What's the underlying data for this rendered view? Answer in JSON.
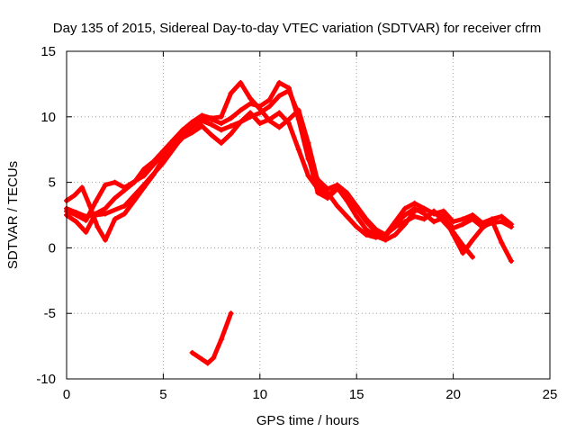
{
  "chart_data": {
    "type": "line",
    "title": "Day 135 of 2015, Sidereal Day-to-day VTEC variation (SDTVAR) for receiver cfrm",
    "xlabel": "GPS time / hours",
    "ylabel": "SDTVAR / TECUs",
    "xlim": [
      0,
      25
    ],
    "ylim": [
      -10,
      15
    ],
    "xticks": [
      0,
      5,
      10,
      15,
      20,
      25
    ],
    "yticks": [
      -10,
      -5,
      0,
      5,
      10,
      15
    ],
    "xtick_labels": [
      "0",
      "5",
      "10",
      "15",
      "20",
      "25"
    ],
    "ytick_labels": [
      "-10",
      "-5",
      "0",
      "5",
      "10",
      "15"
    ],
    "grid": true,
    "legend": "none",
    "color": "#ff0000",
    "series": [
      {
        "name": "track-1",
        "x": [
          0.0,
          0.5,
          1.0,
          2.0,
          3.0,
          4.0,
          5.0,
          6.0,
          6.5,
          7.0,
          7.5,
          8.0,
          8.5,
          9.0,
          9.5,
          10.0,
          10.5,
          11.0,
          11.5,
          12.0,
          12.5,
          13.0,
          13.5,
          14.0,
          14.5,
          15.0,
          15.5,
          16.0,
          16.5,
          17.0,
          17.5,
          18.0,
          18.5,
          19.0,
          19.5,
          20.0,
          20.5,
          21.0,
          21.5,
          22.0,
          22.5,
          23.0
        ],
        "y": [
          3.0,
          2.7,
          2.4,
          2.6,
          3.2,
          4.8,
          6.5,
          8.5,
          9.2,
          9.7,
          9.4,
          9.0,
          9.3,
          9.6,
          10.0,
          10.3,
          10.8,
          11.6,
          12.0,
          10.2,
          7.0,
          4.2,
          3.8,
          4.5,
          4.0,
          3.0,
          2.0,
          1.2,
          0.9,
          1.8,
          2.5,
          3.0,
          2.6,
          2.0,
          2.3,
          1.5,
          1.8,
          2.2,
          1.6,
          1.9,
          2.0,
          1.6
        ]
      },
      {
        "name": "track-2",
        "x": [
          0.0,
          0.5,
          1.0,
          1.5,
          2.0,
          2.5,
          3.0,
          4.0,
          5.0,
          6.0,
          6.5,
          7.0,
          7.5,
          8.0,
          8.5,
          9.0,
          9.5,
          10.0,
          10.5,
          11.0,
          11.5,
          12.0,
          12.5,
          13.0,
          13.5,
          14.0,
          14.5,
          15.0,
          15.5,
          16.0,
          16.5,
          17.0,
          17.5,
          18.0,
          18.5,
          19.0,
          19.5,
          20.0,
          20.5,
          21.0,
          21.5,
          22.0,
          22.5,
          23.0
        ],
        "y": [
          2.8,
          2.5,
          2.1,
          3.5,
          4.8,
          5.0,
          4.6,
          5.5,
          7.2,
          8.7,
          9.6,
          10.0,
          9.8,
          9.5,
          9.9,
          10.5,
          11.0,
          10.8,
          11.3,
          12.6,
          12.2,
          9.8,
          6.8,
          5.2,
          4.5,
          4.8,
          4.2,
          3.2,
          2.2,
          1.4,
          1.0,
          2.0,
          3.0,
          3.4,
          3.0,
          2.6,
          2.8,
          2.0,
          2.2,
          2.5,
          1.9,
          2.2,
          2.4,
          1.8
        ]
      },
      {
        "name": "track-3",
        "x": [
          0.0,
          0.4,
          0.8,
          1.2,
          1.6,
          2.0,
          2.5,
          3.0,
          3.5,
          4.0,
          4.5,
          5.0,
          5.5,
          6.0,
          6.5,
          7.0,
          7.5,
          8.0,
          8.5,
          9.0,
          9.5,
          10.0,
          10.5,
          11.0,
          11.5,
          12.0,
          12.5,
          13.0,
          13.5,
          14.0,
          14.5,
          15.0,
          15.5,
          16.0,
          16.5,
          17.0,
          17.5,
          18.0,
          18.5,
          19.0,
          19.5,
          20.0,
          20.5,
          21.0
        ],
        "y": [
          3.6,
          4.0,
          4.6,
          3.2,
          1.6,
          0.6,
          2.2,
          2.6,
          3.6,
          4.6,
          5.6,
          6.8,
          7.6,
          8.4,
          8.8,
          9.3,
          8.6,
          8.0,
          8.7,
          9.6,
          10.3,
          9.5,
          9.8,
          10.3,
          9.5,
          7.5,
          5.5,
          4.5,
          4.2,
          3.2,
          2.4,
          1.6,
          1.0,
          0.8,
          1.0,
          1.6,
          2.0,
          2.4,
          2.2,
          2.8,
          2.0,
          1.2,
          0.2,
          -0.7
        ]
      },
      {
        "name": "track-4",
        "x": [
          0.0,
          0.5,
          1.0,
          1.5,
          2.0,
          2.5,
          3.0,
          3.5,
          4.0,
          4.5,
          5.0,
          5.5,
          6.0,
          6.5,
          7.0,
          7.5,
          8.0,
          8.5,
          9.0,
          9.5,
          10.0,
          10.5,
          11.0,
          11.5,
          12.0,
          12.5,
          13.0,
          13.5,
          14.0,
          14.5,
          15.0,
          15.5,
          16.0,
          16.5,
          17.0,
          17.5,
          18.0,
          18.5,
          19.0,
          19.5,
          20.0,
          20.5,
          21.0,
          21.5,
          22.0,
          22.5,
          23.0
        ],
        "y": [
          2.5,
          2.0,
          1.2,
          2.6,
          3.0,
          3.8,
          4.4,
          5.0,
          6.0,
          6.6,
          7.4,
          8.2,
          9.0,
          9.6,
          10.1,
          9.9,
          10.0,
          11.8,
          12.6,
          11.4,
          10.6,
          9.7,
          9.2,
          9.8,
          10.5,
          8.0,
          5.0,
          4.0,
          4.6,
          3.6,
          2.4,
          1.4,
          0.9,
          0.6,
          1.0,
          1.8,
          2.8,
          3.0,
          2.6,
          2.4,
          1.0,
          -0.4,
          0.6,
          1.5,
          2.1,
          0.4,
          -1.0
        ]
      },
      {
        "name": "track-5",
        "x": [
          6.5,
          7.0,
          7.3,
          7.6,
          8.0,
          8.5
        ],
        "y": [
          -8.0,
          -8.5,
          -8.8,
          -8.4,
          -7.0,
          -5.0
        ]
      }
    ]
  }
}
